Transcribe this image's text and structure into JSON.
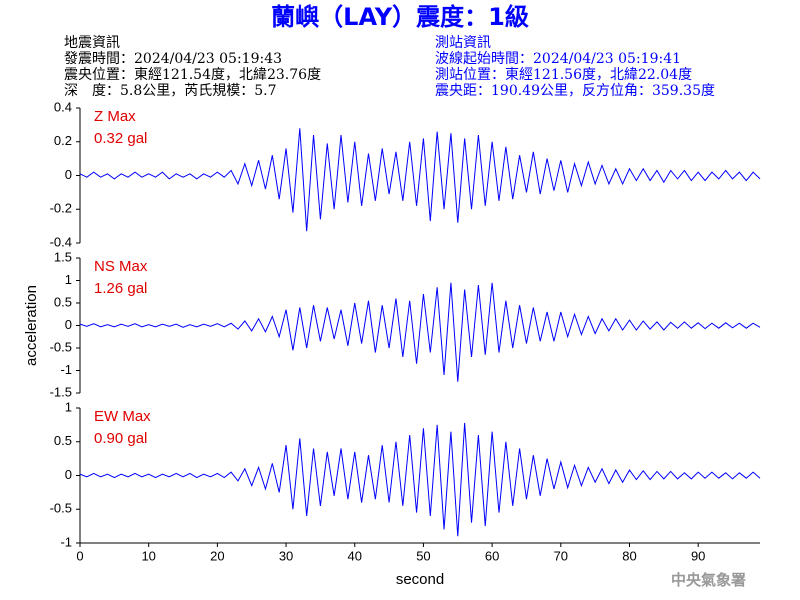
{
  "header": {
    "title": "蘭嶼（LAY）震度：1級",
    "left": [
      "地震資訊",
      "發震時間：2024/04/23 05:19:43",
      "震央位置：東經121.54度，北緯23.76度",
      "深　度：5.8公里，芮氏規模：5.7"
    ],
    "right": [
      "測站資訊",
      "波線起始時間：2024/04/23 05:19:41",
      "測站位置：東經121.56度，北緯22.04度",
      "震央距：190.49公里，反方位角：359.35度"
    ]
  },
  "footer": "中央氣象署",
  "chart_data": [
    {
      "type": "line",
      "label": "Z Max",
      "max_label": "0.32 gal",
      "color": "#0000ff",
      "label_color": "#e00000",
      "xlim": [
        0,
        99
      ],
      "ylim": [
        -0.4,
        0.4
      ],
      "yticks": [
        -0.4,
        -0.2,
        0,
        0.2,
        0.4
      ],
      "x": [
        0,
        1,
        2,
        3,
        4,
        5,
        6,
        7,
        8,
        9,
        10,
        11,
        12,
        13,
        14,
        15,
        16,
        17,
        18,
        19,
        20,
        21,
        22,
        23,
        24,
        25,
        26,
        27,
        28,
        29,
        30,
        31,
        32,
        33,
        34,
        35,
        36,
        37,
        38,
        39,
        40,
        41,
        42,
        43,
        44,
        45,
        46,
        47,
        48,
        49,
        50,
        51,
        52,
        53,
        54,
        55,
        56,
        57,
        58,
        59,
        60,
        61,
        62,
        63,
        64,
        65,
        66,
        67,
        68,
        69,
        70,
        71,
        72,
        73,
        74,
        75,
        76,
        77,
        78,
        79,
        80,
        81,
        82,
        83,
        84,
        85,
        86,
        87,
        88,
        89,
        90,
        91,
        92,
        93,
        94,
        95,
        96,
        97,
        98,
        99
      ],
      "values": [
        0.01,
        -0.01,
        0.02,
        -0.01,
        0.01,
        -0.02,
        0.01,
        -0.01,
        0.02,
        -0.01,
        0.01,
        -0.01,
        0.02,
        -0.02,
        0.01,
        -0.01,
        0.01,
        -0.02,
        0.01,
        -0.01,
        0.02,
        -0.01,
        0.03,
        -0.05,
        0.07,
        -0.06,
        0.09,
        -0.08,
        0.12,
        -0.14,
        0.16,
        -0.22,
        0.28,
        -0.33,
        0.24,
        -0.26,
        0.19,
        -0.2,
        0.24,
        -0.16,
        0.2,
        -0.18,
        0.13,
        -0.15,
        0.16,
        -0.11,
        0.14,
        -0.15,
        0.2,
        -0.18,
        0.22,
        -0.27,
        0.26,
        -0.2,
        0.25,
        -0.28,
        0.22,
        -0.2,
        0.24,
        -0.18,
        0.2,
        -0.15,
        0.17,
        -0.14,
        0.12,
        -0.1,
        0.14,
        -0.11,
        0.1,
        -0.09,
        0.09,
        -0.1,
        0.07,
        -0.06,
        0.08,
        -0.05,
        0.06,
        -0.05,
        0.04,
        -0.05,
        0.04,
        -0.03,
        0.04,
        -0.03,
        0.03,
        -0.04,
        0.03,
        -0.02,
        0.03,
        -0.03,
        0.02,
        -0.03,
        0.02,
        -0.02,
        0.03,
        -0.02,
        0.02,
        -0.03,
        0.02,
        -0.02
      ]
    },
    {
      "type": "line",
      "label": "NS Max",
      "max_label": "1.26 gal",
      "color": "#0000ff",
      "label_color": "#e00000",
      "ylabel": "acceleration",
      "xlim": [
        0,
        99
      ],
      "ylim": [
        -1.5,
        1.5
      ],
      "yticks": [
        -1.5,
        -1,
        -0.5,
        0,
        0.5,
        1,
        1.5
      ],
      "x": [
        0,
        1,
        2,
        3,
        4,
        5,
        6,
        7,
        8,
        9,
        10,
        11,
        12,
        13,
        14,
        15,
        16,
        17,
        18,
        19,
        20,
        21,
        22,
        23,
        24,
        25,
        26,
        27,
        28,
        29,
        30,
        31,
        32,
        33,
        34,
        35,
        36,
        37,
        38,
        39,
        40,
        41,
        42,
        43,
        44,
        45,
        46,
        47,
        48,
        49,
        50,
        51,
        52,
        53,
        54,
        55,
        56,
        57,
        58,
        59,
        60,
        61,
        62,
        63,
        64,
        65,
        66,
        67,
        68,
        69,
        70,
        71,
        72,
        73,
        74,
        75,
        76,
        77,
        78,
        79,
        80,
        81,
        82,
        83,
        84,
        85,
        86,
        87,
        88,
        89,
        90,
        91,
        92,
        93,
        94,
        95,
        96,
        97,
        98,
        99
      ],
      "values": [
        0.03,
        -0.02,
        0.04,
        -0.03,
        0.02,
        -0.03,
        0.03,
        -0.02,
        0.04,
        -0.03,
        0.02,
        -0.03,
        0.03,
        -0.02,
        0.03,
        -0.04,
        0.02,
        -0.03,
        0.03,
        -0.02,
        0.04,
        -0.03,
        0.05,
        -0.08,
        0.1,
        -0.12,
        0.15,
        -0.14,
        0.2,
        -0.25,
        0.35,
        -0.55,
        0.4,
        -0.5,
        0.45,
        -0.35,
        0.4,
        -0.3,
        0.35,
        -0.45,
        0.5,
        -0.4,
        0.55,
        -0.6,
        0.45,
        -0.5,
        0.6,
        -0.7,
        0.55,
        -0.85,
        0.7,
        -0.6,
        0.85,
        -1.1,
        0.95,
        -1.25,
        0.8,
        -0.7,
        0.9,
        -0.65,
        0.95,
        -0.6,
        0.55,
        -0.5,
        0.45,
        -0.4,
        0.4,
        -0.35,
        0.3,
        -0.35,
        0.3,
        -0.25,
        0.25,
        -0.2,
        0.2,
        -0.18,
        0.15,
        -0.12,
        0.15,
        -0.1,
        0.12,
        -0.1,
        0.1,
        -0.08,
        0.08,
        -0.1,
        0.07,
        -0.06,
        0.08,
        -0.06,
        0.06,
        -0.07,
        0.05,
        -0.06,
        0.06,
        -0.05,
        0.05,
        -0.06,
        0.05,
        -0.04
      ]
    },
    {
      "type": "line",
      "label": "EW Max",
      "max_label": "0.90 gal",
      "color": "#0000ff",
      "label_color": "#e00000",
      "xlabel": "second",
      "xlim": [
        0,
        99
      ],
      "xticks": [
        0,
        10,
        20,
        30,
        40,
        50,
        60,
        70,
        80,
        90
      ],
      "ylim": [
        -1,
        1
      ],
      "yticks": [
        -1,
        -0.5,
        0,
        0.5,
        1
      ],
      "x": [
        0,
        1,
        2,
        3,
        4,
        5,
        6,
        7,
        8,
        9,
        10,
        11,
        12,
        13,
        14,
        15,
        16,
        17,
        18,
        19,
        20,
        21,
        22,
        23,
        24,
        25,
        26,
        27,
        28,
        29,
        30,
        31,
        32,
        33,
        34,
        35,
        36,
        37,
        38,
        39,
        40,
        41,
        42,
        43,
        44,
        45,
        46,
        47,
        48,
        49,
        50,
        51,
        52,
        53,
        54,
        55,
        56,
        57,
        58,
        59,
        60,
        61,
        62,
        63,
        64,
        65,
        66,
        67,
        68,
        69,
        70,
        71,
        72,
        73,
        74,
        75,
        76,
        77,
        78,
        79,
        80,
        81,
        82,
        83,
        84,
        85,
        86,
        87,
        88,
        89,
        90,
        91,
        92,
        93,
        94,
        95,
        96,
        97,
        98,
        99
      ],
      "values": [
        0.02,
        -0.02,
        0.03,
        -0.02,
        0.02,
        -0.03,
        0.02,
        -0.02,
        0.03,
        -0.02,
        0.02,
        -0.03,
        0.02,
        -0.02,
        0.03,
        -0.02,
        0.03,
        -0.03,
        0.02,
        -0.02,
        0.03,
        -0.03,
        0.05,
        -0.08,
        0.1,
        -0.15,
        0.12,
        -0.2,
        0.18,
        -0.25,
        0.45,
        -0.5,
        0.55,
        -0.6,
        0.4,
        -0.45,
        0.35,
        -0.3,
        0.4,
        -0.35,
        0.35,
        -0.4,
        0.3,
        -0.35,
        0.45,
        -0.4,
        0.5,
        -0.45,
        0.6,
        -0.55,
        0.7,
        -0.6,
        0.75,
        -0.8,
        0.65,
        -0.9,
        0.78,
        -0.7,
        0.6,
        -0.75,
        0.65,
        -0.55,
        0.5,
        -0.45,
        0.4,
        -0.35,
        0.3,
        -0.3,
        0.25,
        -0.2,
        0.2,
        -0.18,
        0.15,
        -0.15,
        0.12,
        -0.1,
        0.1,
        -0.12,
        0.08,
        -0.1,
        0.08,
        -0.06,
        0.07,
        -0.06,
        0.06,
        -0.05,
        0.06,
        -0.05,
        0.04,
        -0.05,
        0.05,
        -0.04,
        0.05,
        -0.04,
        0.04,
        -0.05,
        0.04,
        -0.04,
        0.05,
        -0.04
      ]
    }
  ]
}
